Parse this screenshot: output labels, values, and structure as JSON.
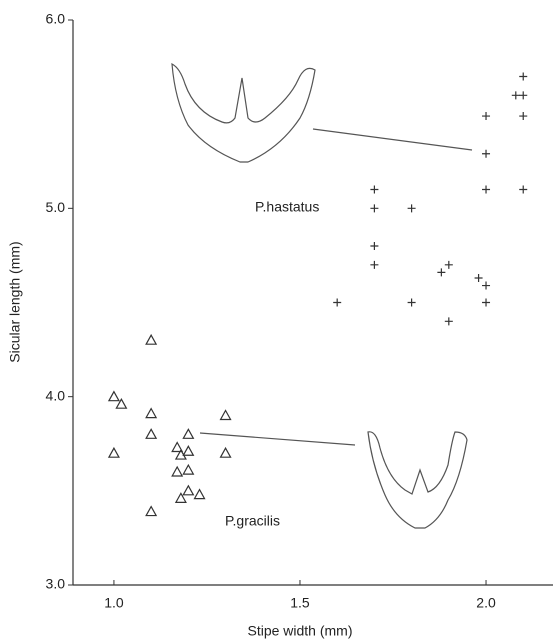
{
  "chart_data": {
    "type": "scatter",
    "x_label": "Stipe width (mm)",
    "y_label": "Sicular length (mm)",
    "xlim": [
      0.89,
      2.18
    ],
    "ylim": [
      3,
      6
    ],
    "xticks": [
      {
        "value": 1,
        "label": "1.0"
      },
      {
        "value": 1.5,
        "label": "1.5"
      },
      {
        "value": 2,
        "label": "2.0"
      }
    ],
    "yticks": [
      {
        "value": 3,
        "label": "3.0"
      },
      {
        "value": 4,
        "label": "4.0"
      },
      {
        "value": 5,
        "label": "5.0"
      },
      {
        "value": 6,
        "label": "6.0"
      }
    ],
    "series": [
      {
        "name": "P.hastatus",
        "marker": "plus",
        "color": "#333",
        "x": [
          1.7,
          1.7,
          1.7,
          1.7,
          1.8,
          1.6,
          1.8,
          1.9,
          1.88,
          1.9,
          1.98,
          2.0,
          2.0,
          2.0,
          2.0,
          2.0,
          2.1,
          2.1,
          2.1,
          2.08,
          2.1
        ],
        "values": [
          5.1,
          5.0,
          4.8,
          4.7,
          5.0,
          4.5,
          4.5,
          4.7,
          4.66,
          4.4,
          4.63,
          4.59,
          4.5,
          5.1,
          5.29,
          5.49,
          5.1,
          5.49,
          5.6,
          5.6,
          5.7
        ]
      },
      {
        "name": "P.gracilis",
        "marker": "triangle",
        "color": "#333",
        "x": [
          1.0,
          1.02,
          1.0,
          1.1,
          1.1,
          1.1,
          1.1,
          1.17,
          1.18,
          1.2,
          1.2,
          1.17,
          1.2,
          1.2,
          1.18,
          1.23,
          1.3,
          1.3
        ],
        "values": [
          4.0,
          3.96,
          3.7,
          4.3,
          3.91,
          3.8,
          3.39,
          3.73,
          3.69,
          3.71,
          3.8,
          3.6,
          3.61,
          3.5,
          3.46,
          3.48,
          3.9,
          3.7
        ]
      }
    ]
  }
}
